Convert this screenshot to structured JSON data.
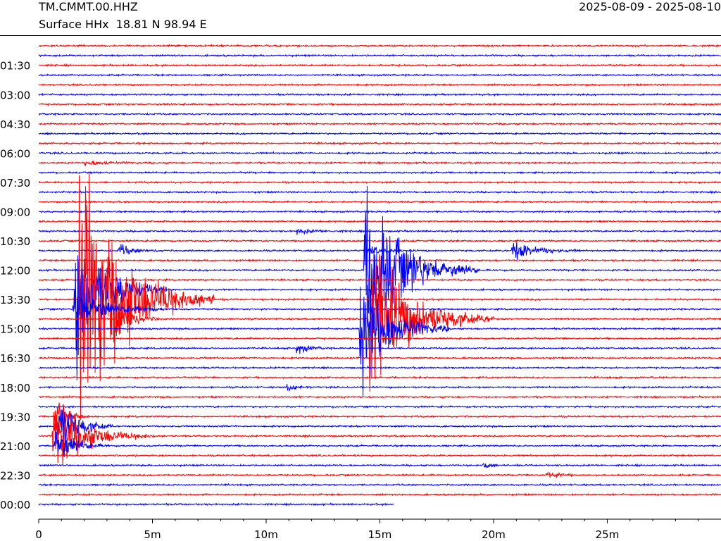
{
  "header": {
    "station": "TM.CMMT.00.HHZ",
    "subtitle": "Surface HHx  18.81 N 98.94 E",
    "date_range": "2025-08-09 - 2025-08-10"
  },
  "chart_data": {
    "type": "line",
    "title": "TM.CMMT.00.HHZ",
    "subtitle": "Surface HHx  18.81 N 98.94 E",
    "date_range": "2025-08-09 - 2025-08-10",
    "xlabel": "",
    "ylabel": "",
    "xlim_minutes": [
      0,
      30
    ],
    "x_ticks": [
      {
        "value": 0,
        "label": "0"
      },
      {
        "value": 5,
        "label": "5m"
      },
      {
        "value": 10,
        "label": "10m"
      },
      {
        "value": 15,
        "label": "15m"
      },
      {
        "value": 20,
        "label": "20m"
      },
      {
        "value": 25,
        "label": "25m"
      }
    ],
    "y_ticks": [
      "01:30",
      "03:00",
      "04:30",
      "06:00",
      "07:30",
      "09:00",
      "10:30",
      "12:00",
      "13:30",
      "15:00",
      "16:30",
      "18:00",
      "19:30",
      "21:00",
      "22:30",
      "00:00"
    ],
    "colors": {
      "odd_rows": "#ff0000",
      "even_rows": "#0000ff"
    },
    "trace_count": 48,
    "last_trace_end_minute": 15.6,
    "events": [
      {
        "trace": 12,
        "minute": 2.0,
        "amp": 4,
        "dur": 3.0
      },
      {
        "trace": 19,
        "minute": 11.3,
        "amp": 4,
        "dur": 2.5
      },
      {
        "trace": 21,
        "minute": 3.5,
        "amp": 10,
        "dur": 2.0
      },
      {
        "trace": 21,
        "minute": 14.5,
        "amp": 6,
        "dur": 2.5
      },
      {
        "trace": 21,
        "minute": 20.8,
        "amp": 18,
        "dur": 3.0
      },
      {
        "trace": 23,
        "minute": 14.3,
        "amp": 140,
        "dur": 5.0
      },
      {
        "trace": 25,
        "minute": 1.6,
        "amp": 140,
        "dur": 4.0
      },
      {
        "trace": 26,
        "minute": 1.7,
        "amp": 220,
        "dur": 6.0
      },
      {
        "trace": 27,
        "minute": 1.5,
        "amp": 40,
        "dur": 4.0
      },
      {
        "trace": 28,
        "minute": 3.4,
        "amp": 30,
        "dur": 2.0
      },
      {
        "trace": 28,
        "minute": 14.5,
        "amp": 130,
        "dur": 5.5
      },
      {
        "trace": 29,
        "minute": 14.1,
        "amp": 100,
        "dur": 4.0
      },
      {
        "trace": 31,
        "minute": 11.3,
        "amp": 10,
        "dur": 1.5
      },
      {
        "trace": 35,
        "minute": 10.9,
        "amp": 6,
        "dur": 1.5
      },
      {
        "trace": 38,
        "minute": 0.7,
        "amp": 40,
        "dur": 1.5
      },
      {
        "trace": 39,
        "minute": 0.8,
        "amp": 55,
        "dur": 2.5
      },
      {
        "trace": 40,
        "minute": 0.6,
        "amp": 60,
        "dur": 4.5
      },
      {
        "trace": 41,
        "minute": 0.7,
        "amp": 30,
        "dur": 2.5
      },
      {
        "trace": 43,
        "minute": 19.5,
        "amp": 8,
        "dur": 1.0
      },
      {
        "trace": 44,
        "minute": 22.3,
        "amp": 8,
        "dur": 1.5
      }
    ]
  }
}
